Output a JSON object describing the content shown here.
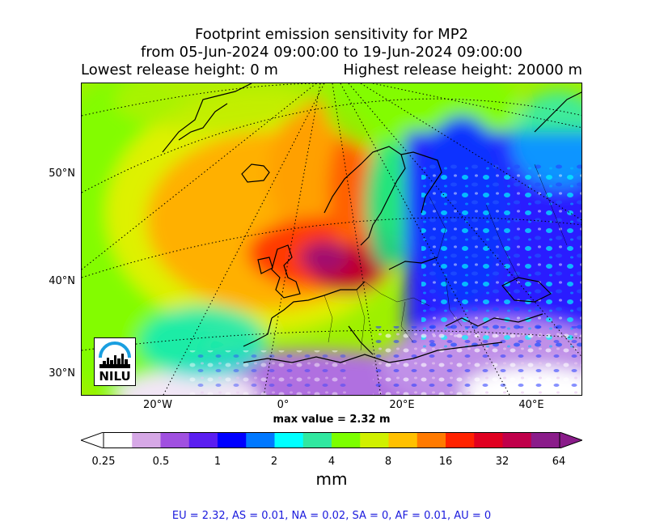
{
  "title": {
    "line1": "Footprint emission sensitivity for MP2",
    "line2": "from 05-Jun-2024 09:00:00 to 19-Jun-2024 09:00:00",
    "lowest_release": "Lowest release height: 0 m",
    "highest_release": "Highest release height: 20000 m"
  },
  "map": {
    "lat_labels": [
      "50°N",
      "40°N",
      "30°N"
    ],
    "lon_labels": [
      "20°W",
      "0°",
      "20°E",
      "40°E"
    ],
    "logo_text": "NILU",
    "icons": [
      "nilu-logo"
    ]
  },
  "max_value": "max value = 2.32 m",
  "colorbar": {
    "ticks": [
      "0.25",
      "0.5",
      "1",
      "2",
      "4",
      "8",
      "16",
      "32",
      "64"
    ],
    "unit": "mm",
    "colors": [
      "#ffffff",
      "#d6a8e6",
      "#a050e0",
      "#5a1ef0",
      "#0000ff",
      "#0078ff",
      "#00ffff",
      "#30e8a0",
      "#7cff00",
      "#d0f000",
      "#ffc000",
      "#ff7a00",
      "#ff2200",
      "#e00020",
      "#c0004a",
      "#8a1c8a"
    ]
  },
  "region_stats": "EU = 2.32,  AS = 0.01,  NA = 0.02,  SA = 0,  AF = 0.01,  AU = 0"
}
